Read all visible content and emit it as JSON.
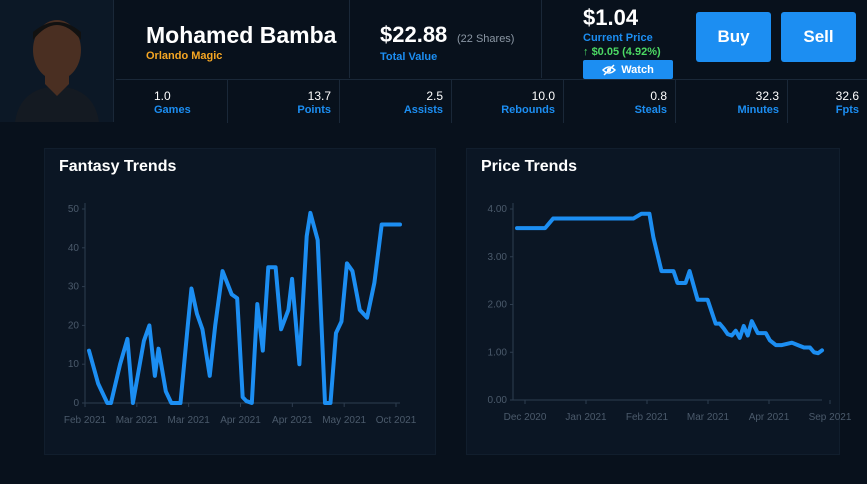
{
  "player": {
    "name": "Mohamed Bamba",
    "team": "Orlando Magic"
  },
  "holding": {
    "total_value": "$22.88",
    "shares": "(22 Shares)",
    "total_label": "Total Value"
  },
  "price": {
    "current": "$1.04",
    "label": "Current Price",
    "change": "$0.05 (4.92%)",
    "watch_label": "Watch",
    "buy_label": "Buy",
    "sell_label": "Sell"
  },
  "stats": [
    {
      "value": "1.0",
      "label": "Games"
    },
    {
      "value": "13.7",
      "label": "Points"
    },
    {
      "value": "2.5",
      "label": "Assists"
    },
    {
      "value": "10.0",
      "label": "Rebounds"
    },
    {
      "value": "0.8",
      "label": "Steals"
    },
    {
      "value": "32.3",
      "label": "Minutes"
    },
    {
      "value": "32.6",
      "label": "Fpts"
    }
  ],
  "colors": {
    "accent": "#1c8ef2",
    "team": "#f5a623",
    "positive": "#4cd964",
    "background": "#08111c"
  },
  "chart_data": [
    {
      "type": "line",
      "title": "Fantasy Trends",
      "ylim": [
        0,
        50
      ],
      "yticks": [
        "0",
        "10",
        "20",
        "30",
        "40",
        "50"
      ],
      "xtick_labels": [
        "Feb 2021",
        "Mar 2021",
        "Mar 2021",
        "Apr 2021",
        "Apr 2021",
        "May 2021",
        "Oct 2021"
      ],
      "grid": false,
      "x": [
        0,
        5,
        10,
        12,
        17,
        21,
        24,
        27,
        30,
        33,
        36,
        38,
        42,
        45,
        47,
        50,
        54,
        56,
        59,
        62,
        66,
        69,
        73,
        78,
        81,
        84,
        86,
        89,
        92,
        95,
        98,
        102,
        105,
        109,
        111,
        115,
        119,
        121,
        125,
        129,
        132,
        135,
        138,
        141,
        144,
        148,
        152,
        156,
        160,
        164,
        167,
        170
      ],
      "values": [
        13.5,
        5,
        0,
        0,
        10,
        16.5,
        0,
        8,
        16,
        20,
        7,
        14,
        3,
        0,
        0,
        0,
        20,
        29.5,
        23,
        19,
        7,
        20,
        34,
        28,
        27,
        1.5,
        0.5,
        0,
        25.5,
        13.5,
        35,
        35,
        19,
        24,
        32,
        10,
        43,
        49,
        42,
        0,
        0,
        18,
        21,
        36,
        34,
        24,
        22,
        31,
        46,
        46,
        46,
        46
      ]
    },
    {
      "type": "line",
      "title": "Price Trends",
      "ylim": [
        0,
        4
      ],
      "yticks": [
        "0.00",
        "1.00",
        "2.00",
        "3.00",
        "4.00"
      ],
      "xtick_labels": [
        "Dec 2020",
        "Jan 2021",
        "Feb 2021",
        "Mar 2021",
        "Apr 2021",
        "Sep 2021"
      ],
      "grid": false,
      "x": [
        0,
        8,
        14,
        18,
        20,
        30,
        44,
        50,
        58,
        62,
        64,
        66,
        68,
        72,
        75,
        78,
        80,
        84,
        86,
        90,
        92,
        95,
        99,
        101,
        103,
        105,
        107,
        109,
        111,
        113,
        115,
        117,
        120,
        124,
        126,
        129,
        132,
        137,
        140,
        143,
        146,
        148,
        150,
        152
      ],
      "values": [
        3.6,
        3.6,
        3.6,
        3.8,
        3.8,
        3.8,
        3.8,
        3.8,
        3.8,
        3.9,
        3.9,
        3.9,
        3.4,
        2.7,
        2.7,
        2.7,
        2.45,
        2.45,
        2.7,
        2.1,
        2.1,
        2.1,
        1.6,
        1.6,
        1.5,
        1.38,
        1.35,
        1.45,
        1.3,
        1.55,
        1.35,
        1.65,
        1.4,
        1.4,
        1.25,
        1.15,
        1.15,
        1.2,
        1.15,
        1.1,
        1.1,
        1.0,
        0.98,
        1.04
      ]
    }
  ]
}
